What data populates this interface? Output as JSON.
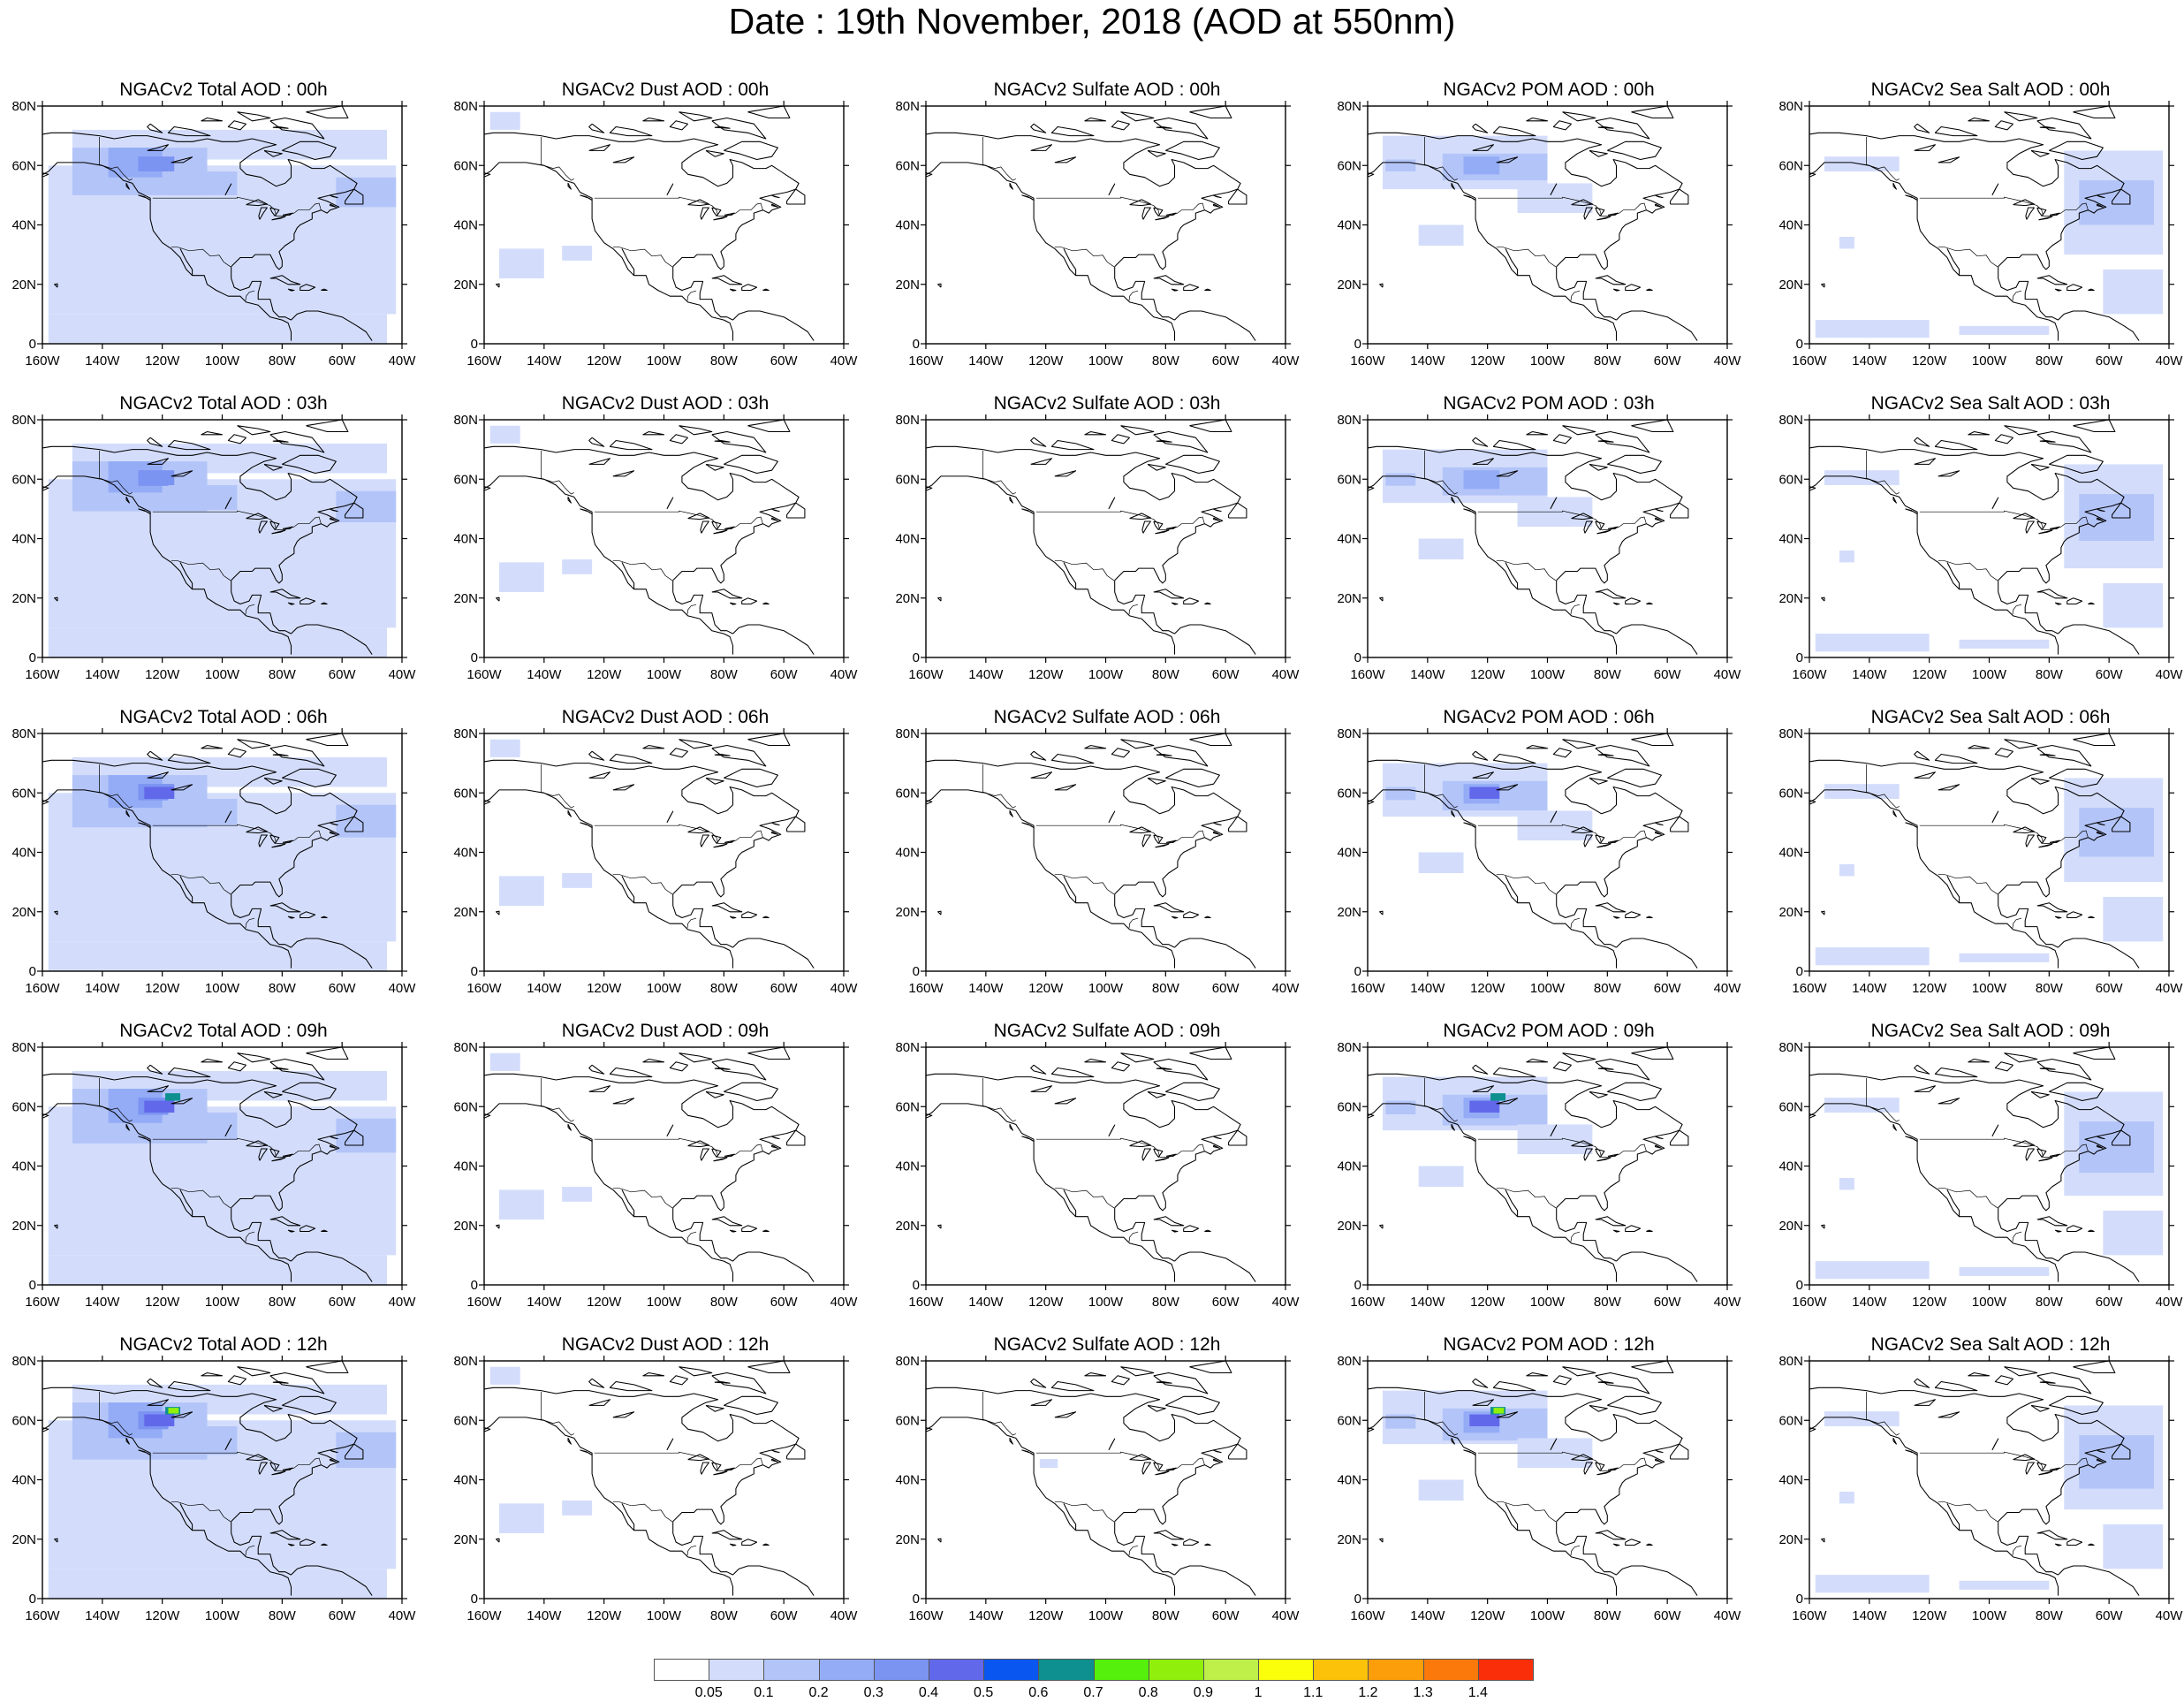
{
  "title": "Date : 19th November, 2018 (AOD at 550nm)",
  "map": {
    "lon_range": [
      -160,
      -40
    ],
    "lat_range": [
      0,
      80
    ],
    "x_tick_labels": [
      "160W",
      "140W",
      "120W",
      "100W",
      "80W",
      "60W",
      "40W"
    ],
    "y_tick_labels": [
      "80N",
      "60N",
      "40N",
      "20N",
      "0"
    ]
  },
  "panels": [
    {
      "title": "NGACv2 Total AOD : 00h",
      "species": "total",
      "hour": 0
    },
    {
      "title": "NGACv2 Dust AOD : 00h",
      "species": "dust",
      "hour": 0
    },
    {
      "title": "NGACv2 Sulfate AOD : 00h",
      "species": "sulfate",
      "hour": 0
    },
    {
      "title": "NGACv2 POM AOD : 00h",
      "species": "pom",
      "hour": 0
    },
    {
      "title": "NGACv2 Sea Salt AOD : 00h",
      "species": "seasalt",
      "hour": 0
    },
    {
      "title": "NGACv2 Total AOD : 03h",
      "species": "total",
      "hour": 3
    },
    {
      "title": "NGACv2 Dust AOD : 03h",
      "species": "dust",
      "hour": 3
    },
    {
      "title": "NGACv2 Sulfate AOD : 03h",
      "species": "sulfate",
      "hour": 3
    },
    {
      "title": "NGACv2 POM AOD : 03h",
      "species": "pom",
      "hour": 3
    },
    {
      "title": "NGACv2 Sea Salt AOD : 03h",
      "species": "seasalt",
      "hour": 3
    },
    {
      "title": "NGACv2 Total AOD : 06h",
      "species": "total",
      "hour": 6
    },
    {
      "title": "NGACv2 Dust AOD : 06h",
      "species": "dust",
      "hour": 6
    },
    {
      "title": "NGACv2 Sulfate AOD : 06h",
      "species": "sulfate",
      "hour": 6
    },
    {
      "title": "NGACv2 POM AOD : 06h",
      "species": "pom",
      "hour": 6
    },
    {
      "title": "NGACv2 Sea Salt AOD : 06h",
      "species": "seasalt",
      "hour": 6
    },
    {
      "title": "NGACv2 Total AOD : 09h",
      "species": "total",
      "hour": 9
    },
    {
      "title": "NGACv2 Dust AOD : 09h",
      "species": "dust",
      "hour": 9
    },
    {
      "title": "NGACv2 Sulfate AOD : 09h",
      "species": "sulfate",
      "hour": 9
    },
    {
      "title": "NGACv2 POM AOD : 09h",
      "species": "pom",
      "hour": 9
    },
    {
      "title": "NGACv2 Sea Salt  AOD : 09h",
      "species": "seasalt",
      "hour": 9
    },
    {
      "title": "NGACv2 Total AOD  : 12h",
      "species": "total",
      "hour": 12
    },
    {
      "title": "NGACv2 Dust AOD : 12h",
      "species": "dust",
      "hour": 12
    },
    {
      "title": "NGACv2 Sulfate AOD : 12h",
      "species": "sulfate",
      "hour": 12
    },
    {
      "title": "NGACv2 POM  AOD : 12h",
      "species": "pom",
      "hour": 12
    },
    {
      "title": "NGACv2 Sea Salt  AOD : 12h",
      "species": "seasalt",
      "hour": 12
    }
  ],
  "colorbar": {
    "colors": [
      "#ffffff",
      "#d3ddfb",
      "#b3c4f8",
      "#94acf6",
      "#7b93f1",
      "#6268ea",
      "#0a56f0",
      "#0d908f",
      "#55f00c",
      "#90f00c",
      "#bff04a",
      "#fbff09",
      "#fcc20a",
      "#fc9e0a",
      "#fb790a",
      "#fb2e0a"
    ],
    "labels": [
      "0.05",
      "0.1",
      "0.2",
      "0.3",
      "0.4",
      "0.5",
      "0.6",
      "0.7",
      "0.8",
      "0.9",
      "1",
      "1.1",
      "1.2",
      "1.3",
      "1.4"
    ]
  },
  "chart_data": {
    "type": "heatmap",
    "title": "Date : 19th November, 2018 (AOD at 550nm)",
    "variable": "AOD at 550nm",
    "rows_forecast_hours": [
      "00h",
      "03h",
      "06h",
      "09h",
      "12h"
    ],
    "columns_species": [
      "Total",
      "Dust",
      "Sulfate",
      "POM",
      "Sea Salt"
    ],
    "x_range_lon": [
      -160,
      -40
    ],
    "y_range_lat": [
      0,
      80
    ],
    "levels": [
      0.05,
      0.1,
      0.2,
      0.3,
      0.4,
      0.5,
      0.6,
      0.7,
      0.8,
      0.9,
      1,
      1.1,
      1.2,
      1.3,
      1.4
    ],
    "features": [
      {
        "species": "Total",
        "region": "Northwest Canada smoke plume",
        "approx_max_aod": 0.9,
        "hour": "12h"
      },
      {
        "species": "POM",
        "region": "Northwest Canada smoke plume",
        "approx_max_aod": 0.9,
        "hour": "12h"
      },
      {
        "species": "Sea Salt",
        "region": "North Atlantic",
        "approx_max_aod": 0.2
      },
      {
        "species": "Dust",
        "region": "Northwest Mexico / Pacific",
        "approx_max_aod": 0.1
      },
      {
        "species": "Sulfate",
        "region": "Pacific Northwest",
        "approx_max_aod": 0.1,
        "hour": "12h"
      }
    ]
  }
}
